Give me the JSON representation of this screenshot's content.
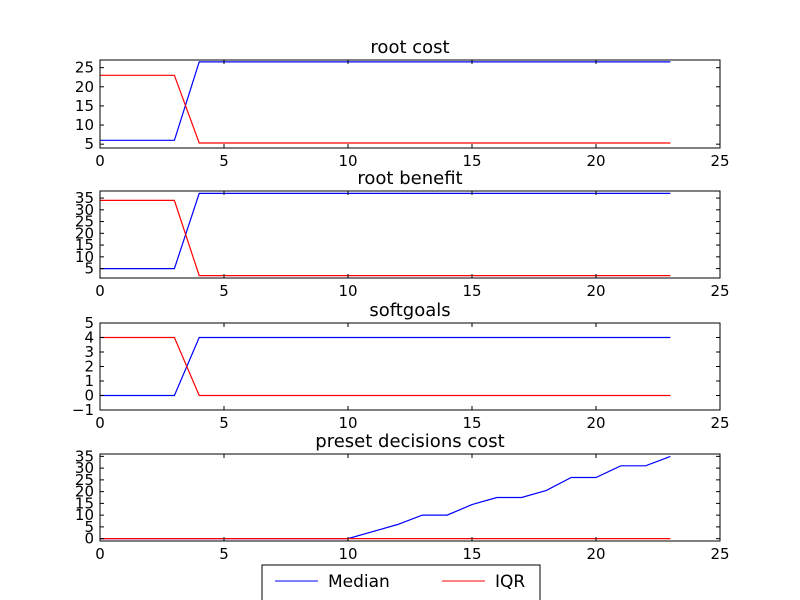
{
  "chart_data": [
    {
      "type": "line",
      "title": "root cost",
      "xlabel": "",
      "ylabel": "",
      "xlim": [
        0,
        25
      ],
      "ylim": [
        4,
        27
      ],
      "xticks": [
        0,
        5,
        10,
        15,
        20,
        25
      ],
      "yticks": [
        5,
        10,
        15,
        20,
        25
      ],
      "grid": false,
      "series": [
        {
          "name": "Median",
          "color": "#0000ff",
          "x": [
            0,
            3,
            4,
            23
          ],
          "y": [
            6,
            6,
            26.5,
            26.5
          ]
        },
        {
          "name": "IQR",
          "color": "#ff0000",
          "x": [
            0,
            3,
            4,
            23
          ],
          "y": [
            23,
            23,
            5.3,
            5.3
          ]
        }
      ]
    },
    {
      "type": "line",
      "title": "root benefit",
      "xlabel": "",
      "ylabel": "",
      "xlim": [
        0,
        25
      ],
      "ylim": [
        1,
        38
      ],
      "xticks": [
        0,
        5,
        10,
        15,
        20,
        25
      ],
      "yticks": [
        5,
        10,
        15,
        20,
        25,
        30,
        35
      ],
      "grid": false,
      "series": [
        {
          "name": "Median",
          "color": "#0000ff",
          "x": [
            0,
            3,
            4,
            23
          ],
          "y": [
            5,
            5,
            37,
            37
          ]
        },
        {
          "name": "IQR",
          "color": "#ff0000",
          "x": [
            0,
            3,
            4,
            23
          ],
          "y": [
            34,
            34,
            2,
            2
          ]
        }
      ]
    },
    {
      "type": "line",
      "title": "softgoals",
      "xlabel": "",
      "ylabel": "",
      "xlim": [
        0,
        25
      ],
      "ylim": [
        -1,
        5
      ],
      "xticks": [
        0,
        5,
        10,
        15,
        20,
        25
      ],
      "yticks": [
        -1,
        0,
        1,
        2,
        3,
        4,
        5
      ],
      "grid": false,
      "series": [
        {
          "name": "Median",
          "color": "#0000ff",
          "x": [
            0,
            3,
            4,
            23
          ],
          "y": [
            0,
            0,
            4,
            4
          ]
        },
        {
          "name": "IQR",
          "color": "#ff0000",
          "x": [
            0,
            3,
            4,
            23
          ],
          "y": [
            4,
            4,
            0,
            0
          ]
        }
      ]
    },
    {
      "type": "line",
      "title": "preset decisions cost",
      "xlabel": "",
      "ylabel": "",
      "xlim": [
        0,
        25
      ],
      "ylim": [
        -1,
        36
      ],
      "xticks": [
        0,
        5,
        10,
        15,
        20,
        25
      ],
      "yticks": [
        0,
        5,
        10,
        15,
        20,
        25,
        30,
        35
      ],
      "grid": false,
      "series": [
        {
          "name": "Median",
          "color": "#0000ff",
          "x": [
            0,
            10,
            11,
            12,
            13,
            14,
            15,
            16,
            17,
            18,
            19,
            20,
            21,
            22,
            23
          ],
          "y": [
            0,
            0,
            3,
            6,
            10,
            10,
            14.5,
            17.5,
            17.5,
            20.5,
            26,
            26,
            31,
            31,
            35
          ]
        },
        {
          "name": "IQR",
          "color": "#ff0000",
          "x": [
            0,
            23
          ],
          "y": [
            0,
            0
          ]
        }
      ]
    }
  ],
  "legend": {
    "placement": "bottom-center",
    "entries": [
      {
        "label": "Median",
        "color": "#0000ff"
      },
      {
        "label": "IQR",
        "color": "#ff0000"
      }
    ]
  }
}
